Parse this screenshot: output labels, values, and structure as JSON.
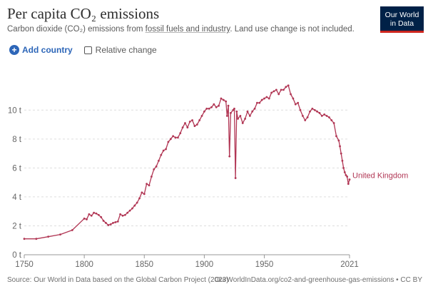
{
  "header": {
    "title": "Per capita CO₂ emissions",
    "subtitle_pre": "Carbon dioxide (CO₂) emissions from ",
    "subtitle_link": "fossil fuels and industry",
    "subtitle_post": ". Land use change is not included.",
    "logo_line1": "Our World",
    "logo_line2": "in Data"
  },
  "controls": {
    "add_country_label": "Add country",
    "relative_change_label": "Relative change"
  },
  "footer": {
    "source": "Source: Our World in Data based on the Global Carbon Project (2023)",
    "link": "OurWorldInData.org/co2-and-greenhouse-gas-emissions • CC BY"
  },
  "colors": {
    "series": "#b13654",
    "grid": "#dddddd",
    "axis": "#666666",
    "brand": "#002147",
    "accent": "#2d66b8"
  },
  "chart_data": {
    "type": "line",
    "title": "Per capita CO₂ emissions",
    "xlabel": "",
    "ylabel": "",
    "xlim": [
      1750,
      2021
    ],
    "ylim": [
      0,
      11
    ],
    "y_ticks": [
      0,
      2,
      4,
      6,
      8,
      10
    ],
    "y_tick_labels": [
      "0 t",
      "2 t",
      "4 t",
      "6 t",
      "8 t",
      "10 t"
    ],
    "x_ticks": [
      1750,
      1800,
      1850,
      1900,
      1950,
      2021
    ],
    "x_tick_labels": [
      "1750",
      "1800",
      "1850",
      "1900",
      "1950",
      "2021"
    ],
    "grid": true,
    "series": [
      {
        "name": "United Kingdom",
        "label": "United Kingdom",
        "x": [
          1750,
          1760,
          1770,
          1780,
          1790,
          1800,
          1802,
          1804,
          1806,
          1808,
          1810,
          1812,
          1814,
          1816,
          1818,
          1820,
          1822,
          1824,
          1826,
          1828,
          1830,
          1832,
          1834,
          1836,
          1838,
          1840,
          1842,
          1844,
          1846,
          1848,
          1850,
          1852,
          1854,
          1856,
          1858,
          1860,
          1862,
          1864,
          1866,
          1868,
          1870,
          1872,
          1874,
          1876,
          1878,
          1880,
          1882,
          1884,
          1886,
          1888,
          1890,
          1892,
          1894,
          1896,
          1898,
          1900,
          1902,
          1904,
          1906,
          1908,
          1910,
          1912,
          1914,
          1916,
          1918,
          1919,
          1920,
          1921,
          1922,
          1924,
          1925,
          1926,
          1927,
          1928,
          1930,
          1932,
          1934,
          1936,
          1938,
          1940,
          1942,
          1944,
          1946,
          1948,
          1950,
          1952,
          1954,
          1956,
          1958,
          1960,
          1962,
          1964,
          1966,
          1968,
          1970,
          1972,
          1974,
          1976,
          1978,
          1980,
          1982,
          1984,
          1986,
          1988,
          1990,
          1992,
          1994,
          1996,
          1998,
          2000,
          2002,
          2004,
          2006,
          2008,
          2010,
          2012,
          2013,
          2014,
          2015,
          2016,
          2017,
          2018,
          2019,
          2020,
          2021
        ],
        "values": [
          1.1,
          1.1,
          1.25,
          1.4,
          1.7,
          2.5,
          2.45,
          2.8,
          2.7,
          2.9,
          2.85,
          2.75,
          2.6,
          2.35,
          2.2,
          2.05,
          2.1,
          2.2,
          2.25,
          2.3,
          2.8,
          2.7,
          2.75,
          2.9,
          3.05,
          3.2,
          3.4,
          3.6,
          3.9,
          4.3,
          4.2,
          4.9,
          4.8,
          5.4,
          5.9,
          6.1,
          6.5,
          6.9,
          7.2,
          7.3,
          7.8,
          8.0,
          8.2,
          8.1,
          8.1,
          8.4,
          8.8,
          9.1,
          8.8,
          9.2,
          9.3,
          8.9,
          9.0,
          9.3,
          9.6,
          9.9,
          10.1,
          10.1,
          10.2,
          10.4,
          10.2,
          10.3,
          10.8,
          10.7,
          10.6,
          9.6,
          10.3,
          6.8,
          9.8,
          10.0,
          10.1,
          5.3,
          9.9,
          9.4,
          9.6,
          9.1,
          9.4,
          9.9,
          9.6,
          9.9,
          10.1,
          10.5,
          10.5,
          10.7,
          10.8,
          10.9,
          10.8,
          11.2,
          11.3,
          11.4,
          11.1,
          11.4,
          11.4,
          11.6,
          11.7,
          11.1,
          10.8,
          10.4,
          10.5,
          10.0,
          9.6,
          9.3,
          9.5,
          9.9,
          10.1,
          10.0,
          9.9,
          9.8,
          9.6,
          9.7,
          9.6,
          9.5,
          9.3,
          9.1,
          8.2,
          7.9,
          7.5,
          7.0,
          6.5,
          6.0,
          5.7,
          5.5,
          5.4,
          4.9,
          5.2
        ]
      }
    ]
  }
}
